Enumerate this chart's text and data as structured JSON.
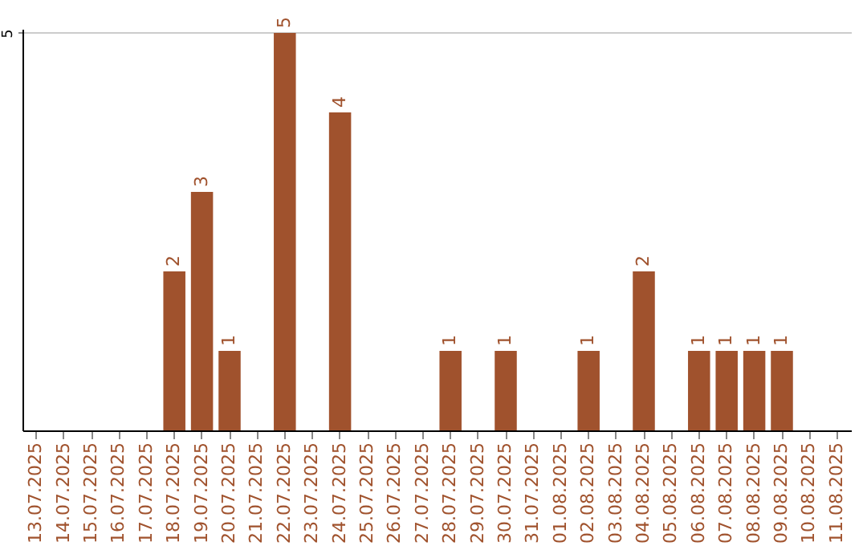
{
  "chart_data": {
    "type": "bar",
    "categories": [
      "13.07.2025",
      "14.07.2025",
      "15.07.2025",
      "16.07.2025",
      "17.07.2025",
      "18.07.2025",
      "19.07.2025",
      "20.07.2025",
      "21.07.2025",
      "22.07.2025",
      "23.07.2025",
      "24.07.2025",
      "25.07.2025",
      "26.07.2025",
      "27.07.2025",
      "28.07.2025",
      "29.07.2025",
      "30.07.2025",
      "31.07.2025",
      "01.08.2025",
      "02.08.2025",
      "03.08.2025",
      "04.08.2025",
      "05.08.2025",
      "06.08.2025",
      "07.08.2025",
      "08.08.2025",
      "09.08.2025",
      "10.08.2025",
      "11.08.2025"
    ],
    "values": [
      0,
      0,
      0,
      0,
      0,
      2,
      3,
      1,
      0,
      5,
      0,
      4,
      0,
      0,
      0,
      1,
      0,
      1,
      0,
      0,
      1,
      0,
      2,
      0,
      1,
      1,
      1,
      1,
      0,
      0
    ],
    "value_labels": [
      null,
      null,
      null,
      null,
      null,
      "2",
      "3",
      "1",
      null,
      "5",
      null,
      "4",
      null,
      null,
      null,
      "1",
      null,
      "1",
      null,
      null,
      "1",
      null,
      "2",
      null,
      "1",
      "1",
      "1",
      "1",
      null,
      null
    ],
    "color": "#a0522d",
    "ylim": [
      0,
      5.05
    ],
    "yticks": [
      5
    ],
    "grid": "y"
  }
}
